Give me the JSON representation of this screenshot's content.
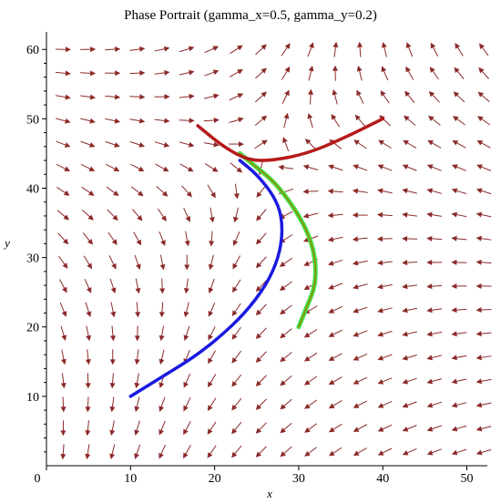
{
  "chart_data": {
    "type": "vector-field",
    "title": "Phase Portrait (gamma_x=0.5, gamma_y=0.2)",
    "xlabel": "x",
    "ylabel": "y",
    "xlim": [
      0,
      52
    ],
    "ylim": [
      0,
      62
    ],
    "x_ticks": [
      0,
      10,
      20,
      30,
      40,
      50
    ],
    "y_ticks": [
      10,
      20,
      30,
      40,
      50,
      60
    ],
    "field_grid": {
      "x_start": 2,
      "x_end": 52,
      "x_count": 18,
      "y_start": 2,
      "y_end": 60,
      "y_count": 18
    },
    "field_equilibrium": [
      26,
      44
    ],
    "colors": {
      "arrows": "#8b2a2a",
      "axes": "#000000"
    },
    "series": [
      {
        "color": "#1a1ae0",
        "points": [
          [
            10,
            10
          ],
          [
            14,
            13
          ],
          [
            18,
            16
          ],
          [
            22,
            20
          ],
          [
            25,
            24
          ],
          [
            27,
            28
          ],
          [
            28,
            32
          ],
          [
            28,
            36
          ],
          [
            27,
            39
          ],
          [
            25,
            42
          ],
          [
            23,
            44
          ]
        ]
      },
      {
        "color": "#4be04b",
        "points": [
          [
            30,
            20
          ],
          [
            31,
            23
          ],
          [
            32,
            26
          ],
          [
            32,
            30
          ],
          [
            31,
            34
          ],
          [
            29,
            38
          ],
          [
            27,
            41
          ],
          [
            25,
            43
          ],
          [
            23,
            45
          ]
        ]
      },
      {
        "color": "#8a8a00",
        "points": [
          [
            30,
            20
          ],
          [
            31,
            23
          ],
          [
            32,
            26
          ],
          [
            32,
            30
          ],
          [
            31,
            34
          ],
          [
            29,
            38
          ],
          [
            27,
            41
          ],
          [
            25,
            43
          ],
          [
            23,
            45
          ]
        ]
      },
      {
        "color": "#b51a1a",
        "points": [
          [
            18,
            49
          ],
          [
            21,
            46
          ],
          [
            24,
            44
          ],
          [
            27,
            44
          ],
          [
            31,
            45
          ],
          [
            35,
            47
          ],
          [
            40,
            50
          ]
        ]
      }
    ]
  }
}
